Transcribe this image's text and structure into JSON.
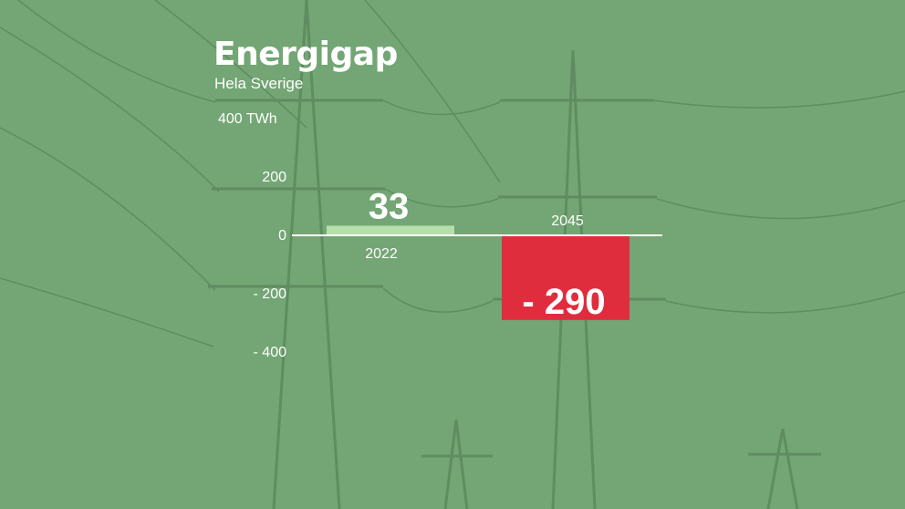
{
  "title": "Energigap",
  "subtitle": "Hela Sverige",
  "colors": {
    "background": "#73a674",
    "positive_bar": "#b6e0ab",
    "negative_bar": "#e02d3e",
    "axis": "#ffffff",
    "text": "#ffffff"
  },
  "chart_data": {
    "type": "bar",
    "title": "Energigap",
    "subtitle": "Hela Sverige",
    "categories": [
      "2022",
      "2045"
    ],
    "values": [
      33,
      -290
    ],
    "value_labels": [
      "33",
      "- 290"
    ],
    "y_ticks": [
      {
        "value": 400,
        "label": "400 TWh"
      },
      {
        "value": 200,
        "label": "200"
      },
      {
        "value": 0,
        "label": "0"
      },
      {
        "value": -200,
        "label": "- 200"
      },
      {
        "value": -400,
        "label": "- 400"
      }
    ],
    "ylim": [
      -400,
      400
    ],
    "ylabel": "TWh",
    "grid": false,
    "legend": "none"
  }
}
